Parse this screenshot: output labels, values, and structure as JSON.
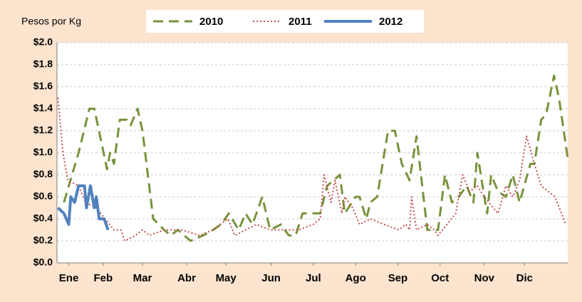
{
  "chart_data": {
    "type": "line",
    "y_label": "Pesos por Kg",
    "xlim": [
      0,
      52
    ],
    "xticks": [
      {
        "value": 1.2,
        "label": "Ene"
      },
      {
        "value": 4.7,
        "label": "Feb"
      },
      {
        "value": 8.7,
        "label": "Mar"
      },
      {
        "value": 13.2,
        "label": "Abr"
      },
      {
        "value": 17.2,
        "label": "May"
      },
      {
        "value": 21.8,
        "label": "Jun"
      },
      {
        "value": 26.1,
        "label": "Jul"
      },
      {
        "value": 30.4,
        "label": "Ago"
      },
      {
        "value": 34.7,
        "label": "Sep"
      },
      {
        "value": 39.0,
        "label": "Oct"
      },
      {
        "value": 43.5,
        "label": "Nov"
      },
      {
        "value": 47.6,
        "label": "Dic"
      }
    ],
    "ylim": [
      0,
      2
    ],
    "yticks": [
      {
        "value": 0,
        "label": "$0.0"
      },
      {
        "value": 0.2,
        "label": "$0.2"
      },
      {
        "value": 0.4,
        "label": "$0.4"
      },
      {
        "value": 0.6,
        "label": "$0.6"
      },
      {
        "value": 0.8,
        "label": "$0.8"
      },
      {
        "value": 1.0,
        "label": "$1.0"
      },
      {
        "value": 1.2,
        "label": "$1.2"
      },
      {
        "value": 1.4,
        "label": "$1.4"
      },
      {
        "value": 1.6,
        "label": "$1.6"
      },
      {
        "value": 1.8,
        "label": "$1.8"
      },
      {
        "value": 2.0,
        "label": "$2.0"
      }
    ],
    "grid": true,
    "series": [
      {
        "name": "2010",
        "color": "#77933c",
        "style": "dashed",
        "x": [
          0.7,
          2.2,
          3.3,
          3.8,
          5.1,
          5.4,
          5.8,
          6.4,
          7.1,
          7.5,
          8.2,
          8.7,
          9.8,
          10.9,
          11.6,
          12.3,
          13.6,
          14.9,
          15.9,
          16.7,
          17.5,
          18.5,
          19.2,
          19.9,
          20.9,
          21.7,
          22.8,
          23.6,
          24.3,
          25.0,
          26.8,
          27.5,
          28.8,
          29.3,
          30.4,
          30.8,
          31.5,
          31.9,
          32.6,
          33.7,
          34.4,
          35.1,
          35.9,
          36.6,
          37.7,
          38.8,
          39.5,
          40.2,
          40.9,
          41.7,
          42.4,
          42.8,
          43.5,
          43.8,
          44.2,
          44.9,
          45.7,
          46.4,
          47.1,
          48.2,
          48.6,
          49.3,
          49.8,
          50.6,
          51.1,
          52.0
        ],
        "values": [
          0.55,
          1.0,
          1.4,
          1.4,
          0.85,
          1.0,
          0.9,
          1.3,
          1.3,
          1.25,
          1.4,
          1.2,
          0.4,
          0.3,
          0.25,
          0.3,
          0.2,
          0.25,
          0.3,
          0.35,
          0.45,
          0.3,
          0.45,
          0.35,
          0.6,
          0.3,
          0.35,
          0.25,
          0.25,
          0.45,
          0.45,
          0.7,
          0.8,
          0.45,
          0.6,
          0.6,
          0.4,
          0.55,
          0.6,
          1.2,
          1.2,
          0.9,
          0.75,
          1.15,
          0.3,
          0.3,
          0.8,
          0.55,
          0.6,
          0.7,
          0.55,
          1.0,
          0.6,
          0.45,
          0.8,
          0.65,
          0.6,
          0.8,
          0.55,
          0.9,
          0.9,
          1.3,
          1.35,
          1.7,
          1.5,
          0.95
        ]
      },
      {
        "name": "2011",
        "color": "#c0504d",
        "style": "dotted",
        "x": [
          0.1,
          0.6,
          1.1,
          2.2,
          2.9,
          4.0,
          5.8,
          6.5,
          6.9,
          8.0,
          8.7,
          9.4,
          10.9,
          12.7,
          14.5,
          15.9,
          17.4,
          18.1,
          20.3,
          21.7,
          24.6,
          26.1,
          26.8,
          27.2,
          27.9,
          28.3,
          29.0,
          29.3,
          30.1,
          30.8,
          31.9,
          33.3,
          34.8,
          35.5,
          35.9,
          36.1,
          36.6,
          37.7,
          38.4,
          38.8,
          40.6,
          41.3,
          42.0,
          42.8,
          43.5,
          44.9,
          45.7,
          46.4,
          47.1,
          47.8,
          48.6,
          49.3,
          50.0,
          50.7,
          51.8
        ],
        "values": [
          1.5,
          1.0,
          0.75,
          0.7,
          0.55,
          0.5,
          0.3,
          0.3,
          0.2,
          0.25,
          0.3,
          0.25,
          0.3,
          0.3,
          0.25,
          0.3,
          0.4,
          0.25,
          0.35,
          0.3,
          0.3,
          0.35,
          0.4,
          0.8,
          0.55,
          0.75,
          0.45,
          0.6,
          0.5,
          0.35,
          0.4,
          0.35,
          0.3,
          0.35,
          0.3,
          0.6,
          0.3,
          0.35,
          0.3,
          0.25,
          0.45,
          0.8,
          0.65,
          0.7,
          0.6,
          0.45,
          0.7,
          0.6,
          0.75,
          1.15,
          0.9,
          0.7,
          0.65,
          0.6,
          0.35
        ]
      },
      {
        "name": "2012",
        "color": "#4f81bd",
        "style": "solid",
        "x": [
          0.1,
          0.7,
          1.2,
          1.4,
          1.8,
          2.2,
          2.8,
          3.0,
          3.4,
          3.8,
          4.0,
          4.3,
          4.8,
          5.2
        ],
        "values": [
          0.5,
          0.45,
          0.35,
          0.6,
          0.55,
          0.7,
          0.7,
          0.5,
          0.7,
          0.5,
          0.6,
          0.4,
          0.4,
          0.3
        ]
      }
    ]
  }
}
